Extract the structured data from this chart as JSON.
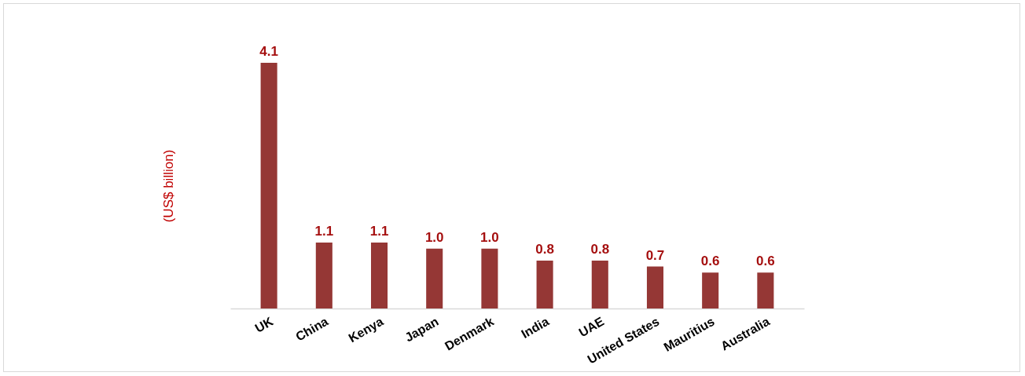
{
  "chart_data": {
    "type": "bar",
    "ylabel": "(US$ billion)",
    "categories": [
      "UK",
      "China",
      "Kenya",
      "Japan",
      "Denmark",
      "India",
      "UAE",
      "United States",
      "Mauritius",
      "Australia"
    ],
    "values": [
      4.1,
      1.1,
      1.1,
      1.0,
      1.0,
      0.8,
      0.8,
      0.7,
      0.6,
      0.6
    ],
    "value_labels": [
      "4.1",
      "1.1",
      "1.1",
      "1.0",
      "1.0",
      "0.8",
      "0.8",
      "0.7",
      "0.6",
      "0.6"
    ],
    "color": "#953735"
  }
}
